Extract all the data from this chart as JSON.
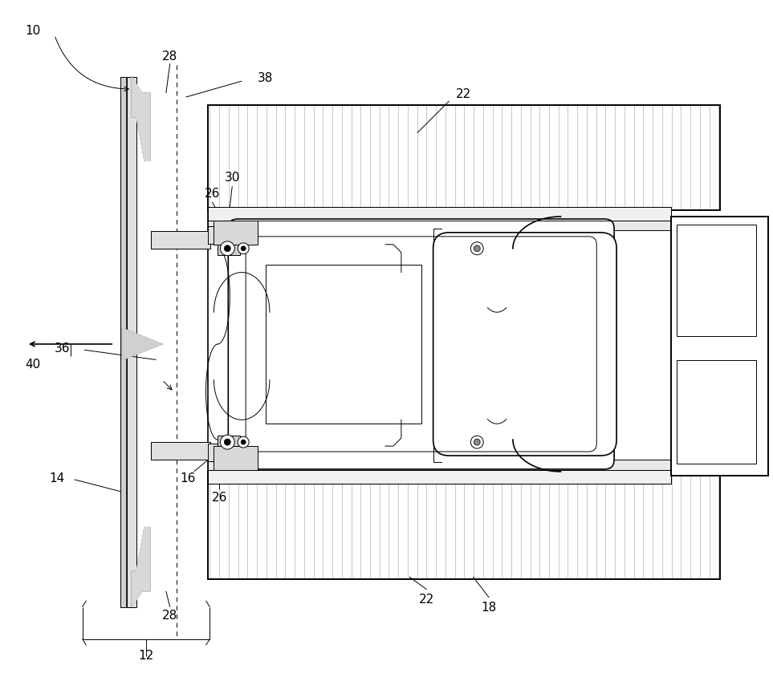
{
  "fig_width": 9.63,
  "fig_height": 8.45,
  "dpi": 100,
  "bg_color": "#ffffff",
  "lc": "#000000",
  "gray_stripe": "#c8c8c8",
  "gray_fill": "#e8e8e8"
}
